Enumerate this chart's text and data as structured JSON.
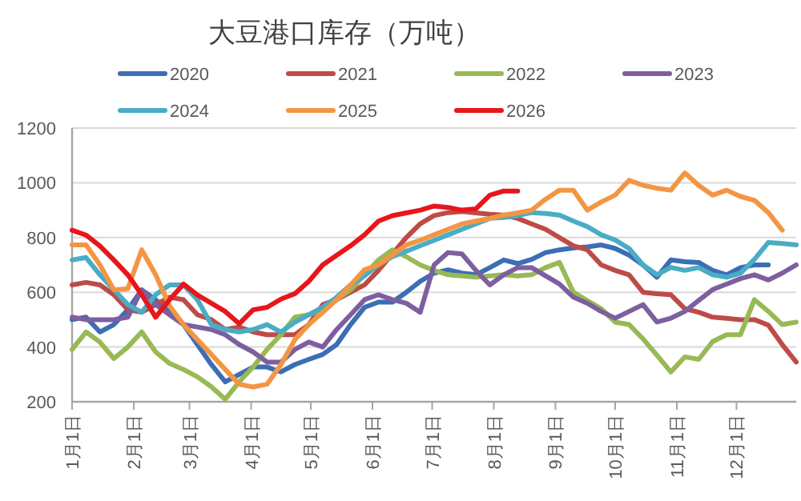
{
  "chart_data": {
    "type": "line",
    "title": "大豆港口库存（万吨）",
    "x": [
      "--01-01",
      "--01-08",
      "--01-15",
      "--01-22",
      "--01-29",
      "--02-05",
      "--02-12",
      "--02-19",
      "--02-26",
      "--03-05",
      "--03-12",
      "--03-19",
      "--03-26",
      "--04-02",
      "--04-09",
      "--04-16",
      "--04-23",
      "--04-30",
      "--05-07",
      "--05-14",
      "--05-21",
      "--05-28",
      "--06-04",
      "--06-11",
      "--06-18",
      "--06-25",
      "--07-02",
      "--07-09",
      "--07-16",
      "--07-23",
      "--07-30",
      "--08-06",
      "--08-13",
      "--08-20",
      "--08-27",
      "--09-03",
      "--09-10",
      "--09-17",
      "--09-24",
      "--10-01",
      "--10-08",
      "--10-15",
      "--10-22",
      "--10-29",
      "--11-05",
      "--11-12",
      "--11-19",
      "--11-26",
      "--12-03",
      "--12-10",
      "--12-17",
      "--12-24",
      "--12-31"
    ],
    "series": [
      {
        "name": "2020",
        "color": "#3d6db5",
        "values": [
          500,
          509,
          455,
          482,
          536,
          609,
          573,
          527,
          482,
          409,
          336,
          273,
          300,
          327,
          327,
          309,
          336,
          355,
          373,
          409,
          482,
          545,
          564,
          564,
          600,
          640,
          670,
          682,
          670,
          664,
          690,
          718,
          705,
          720,
          745,
          755,
          762,
          766,
          773,
          760,
          736,
          700,
          655,
          718,
          712,
          709,
          680,
          664,
          690,
          700,
          700,
          null,
          null
        ]
      },
      {
        "name": "2021",
        "color": "#be4b48",
        "values": [
          627,
          636,
          627,
          591,
          536,
          527,
          555,
          582,
          573,
          518,
          500,
          464,
          473,
          455,
          445,
          445,
          445,
          482,
          555,
          573,
          600,
          627,
          680,
          740,
          800,
          850,
          880,
          891,
          895,
          890,
          885,
          882,
          870,
          850,
          830,
          800,
          770,
          755,
          700,
          680,
          664,
          600,
          595,
          591,
          540,
          527,
          509,
          505,
          500,
          500,
          480,
          409,
          345
        ]
      },
      {
        "name": "2022",
        "color": "#98b954",
        "values": [
          391,
          455,
          418,
          358,
          400,
          455,
          382,
          340,
          318,
          291,
          255,
          209,
          273,
          327,
          391,
          445,
          509,
          518,
          536,
          573,
          609,
          664,
          718,
          755,
          730,
          700,
          680,
          664,
          660,
          655,
          660,
          664,
          660,
          664,
          690,
          709,
          600,
          570,
          540,
          491,
          482,
          430,
          370,
          309,
          364,
          355,
          420,
          445,
          445,
          573,
          530,
          482,
          491
        ]
      },
      {
        "name": "2023",
        "color": "#7d5fa0",
        "values": [
          509,
          500,
          500,
          500,
          509,
          609,
          555,
          518,
          482,
          473,
          464,
          445,
          409,
          382,
          345,
          345,
          391,
          418,
          400,
          464,
          518,
          573,
          591,
          573,
          560,
          527,
          700,
          745,
          740,
          680,
          627,
          664,
          690,
          690,
          660,
          630,
          582,
          560,
          530,
          505,
          530,
          555,
          491,
          505,
          530,
          570,
          610,
          630,
          650,
          664,
          645,
          670,
          700
        ]
      },
      {
        "name": "2024",
        "color": "#4aacc5",
        "values": [
          718,
          727,
          664,
          609,
          555,
          527,
          591,
          627,
          627,
          573,
          482,
          464,
          455,
          464,
          482,
          455,
          491,
          518,
          545,
          582,
          627,
          660,
          700,
          730,
          750,
          770,
          790,
          810,
          830,
          850,
          870,
          873,
          880,
          891,
          888,
          882,
          860,
          840,
          810,
          791,
          760,
          700,
          664,
          691,
          680,
          690,
          664,
          655,
          670,
          720,
          782,
          778,
          773
        ]
      },
      {
        "name": "2025",
        "color": "#f39643",
        "values": [
          773,
          773,
          700,
          609,
          613,
          755,
          664,
          550,
          482,
          427,
          373,
          318,
          264,
          254,
          264,
          336,
          427,
          482,
          527,
          573,
          627,
          682,
          700,
          736,
          773,
          790,
          810,
          830,
          850,
          860,
          870,
          882,
          890,
          900,
          940,
          973,
          973,
          900,
          930,
          955,
          1009,
          991,
          980,
          973,
          1036,
          990,
          955,
          973,
          950,
          936,
          891,
          827,
          null
        ]
      },
      {
        "name": "2026",
        "color": "#e8161b",
        "values": [
          827,
          809,
          769,
          718,
          664,
          591,
          509,
          573,
          630,
          590,
          560,
          530,
          485,
          536,
          545,
          575,
          595,
          640,
          700,
          735,
          770,
          810,
          860,
          880,
          890,
          900,
          915,
          910,
          900,
          905,
          955,
          970,
          970,
          null,
          null,
          null,
          null,
          null,
          null,
          null,
          null,
          null,
          null,
          null,
          null,
          null,
          null,
          null,
          null,
          null,
          null,
          null,
          null
        ]
      }
    ],
    "xlim": [
      "--01-01",
      "--12-31"
    ],
    "xticks": [
      {
        "value": "--01-01",
        "label": "1月1日"
      },
      {
        "value": "--02-01",
        "label": "2月1日"
      },
      {
        "value": "--03-01",
        "label": "3月1日"
      },
      {
        "value": "--04-01",
        "label": "4月1日"
      },
      {
        "value": "--05-01",
        "label": "5月1日"
      },
      {
        "value": "--06-01",
        "label": "6月1日"
      },
      {
        "value": "--07-01",
        "label": "7月1日"
      },
      {
        "value": "--08-01",
        "label": "8月1日"
      },
      {
        "value": "--09-01",
        "label": "9月1日"
      },
      {
        "value": "--10-01",
        "label": "10月1日"
      },
      {
        "value": "--11-01",
        "label": "11月1日"
      },
      {
        "value": "--12-01",
        "label": "12月1日"
      }
    ],
    "ylim": [
      200,
      1200
    ],
    "yticks": [
      200,
      400,
      600,
      800,
      1000,
      1200
    ],
    "grid": "y",
    "legend": "top",
    "marker": "none",
    "line_style": "solid"
  }
}
